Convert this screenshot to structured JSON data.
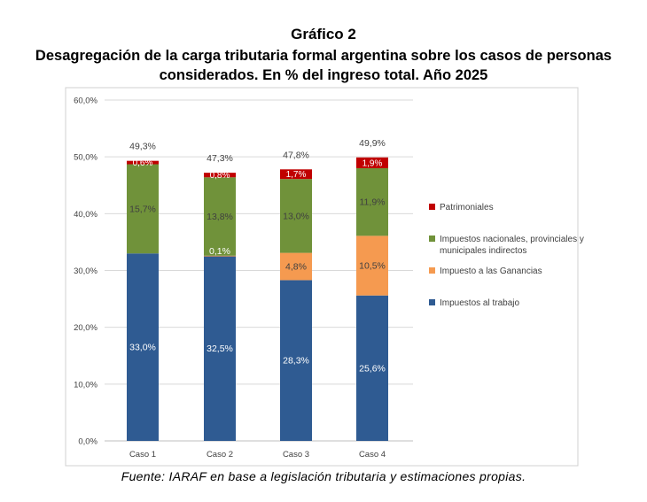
{
  "title_line1": "Gráfico 2",
  "title_line2": "Desagregación de la carga tributaria formal argentina sobre los casos de personas",
  "title_line3": "considerados. En % del ingreso total. Año 2025",
  "source": "Fuente: IARAF en base a legislación tributaria y estimaciones propias.",
  "colors": {
    "trabajo": "#2f5b92",
    "ganancias": "#f59a50",
    "nacionales": "#70923a",
    "patrimoniales": "#c00000"
  },
  "chart_data": {
    "type": "bar",
    "stacked": true,
    "categories": [
      "Caso 1",
      "Caso 2",
      "Caso 3",
      "Caso 4"
    ],
    "series": [
      {
        "name": "Impuestos al trabajo",
        "key": "trabajo",
        "values": [
          33.0,
          32.5,
          28.3,
          25.6
        ],
        "labels": [
          "33,0%",
          "32,5%",
          "28,3%",
          "25,6%"
        ]
      },
      {
        "name": "Impuesto a las Ganancias",
        "key": "ganancias",
        "values": [
          0,
          0.1,
          4.8,
          10.5
        ],
        "labels": [
          "",
          "0,1%",
          "4,8%",
          "10,5%"
        ]
      },
      {
        "name": "Impuestos nacionales, provinciales y municipales indirectos",
        "key": "nacionales",
        "values": [
          15.7,
          13.8,
          13.0,
          11.9
        ],
        "labels": [
          "15,7%",
          "13,8%",
          "13,0%",
          "11,9%"
        ]
      },
      {
        "name": "Patrimoniales",
        "key": "patrimoniales",
        "values": [
          0.6,
          0.8,
          1.7,
          1.9
        ],
        "labels": [
          "0,6%",
          "0,8%",
          "1,7%",
          "1,9%"
        ]
      }
    ],
    "totals": [
      "49,3%",
      "47,3%",
      "47,8%",
      "49,9%"
    ],
    "ylim": [
      0,
      60
    ],
    "yticks": [
      "0,0%",
      "10,0%",
      "20,0%",
      "30,0%",
      "40,0%",
      "50,0%",
      "60,0%"
    ],
    "legend_order": [
      "Patrimoniales",
      "Impuestos nacionales, provinciales y municipales indirectos",
      "Impuesto a las Ganancias",
      "Impuestos al trabajo"
    ],
    "legend_position": "right",
    "grid": true
  }
}
